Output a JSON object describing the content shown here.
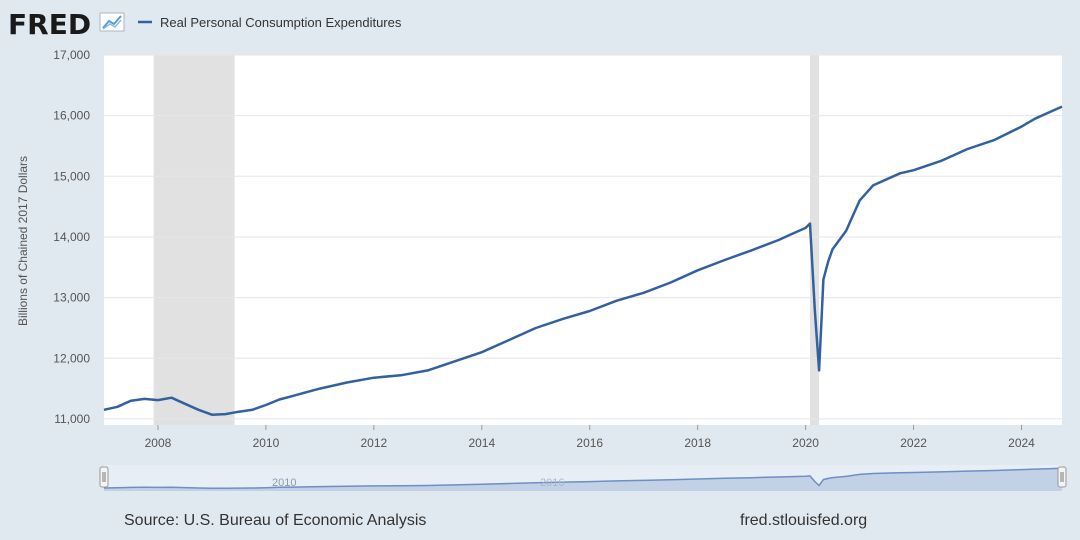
{
  "header": {
    "logo_text": "FRED",
    "logo_icon": "graph-line-icon"
  },
  "legend": {
    "items": [
      {
        "name": "Real Personal Consumption Expenditures",
        "color": "#33619e"
      }
    ]
  },
  "footer": {
    "source": "Source: U.S. Bureau of Economic Analysis",
    "url": "fred.stlouisfed.org"
  },
  "navigator": {
    "labels": [
      "2010",
      "2016"
    ]
  },
  "colors": {
    "background": "#e1e9f0",
    "plot_background": "#ffffff",
    "line": "#33619e",
    "recession": "#e1e1e1",
    "gridline": "#e6e6e6",
    "navigator_fill": "#c2d1e6",
    "navigator_border": "#6d8fc4"
  },
  "chart_data": {
    "type": "line",
    "title": "",
    "xlabel": "",
    "ylabel": "Billions of Chained 2017 Dollars",
    "xlim": [
      2007.0,
      2024.75
    ],
    "ylim": [
      10900,
      17000
    ],
    "yticks": [
      11000,
      12000,
      13000,
      14000,
      15000,
      16000,
      17000
    ],
    "ytick_labels": [
      "11,000",
      "12,000",
      "13,000",
      "14,000",
      "15,000",
      "16,000",
      "17,000"
    ],
    "xticks": [
      2008,
      2010,
      2012,
      2014,
      2016,
      2018,
      2020,
      2022,
      2024
    ],
    "xtick_labels": [
      "2008",
      "2010",
      "2012",
      "2014",
      "2016",
      "2018",
      "2020",
      "2022",
      "2024"
    ],
    "grid": true,
    "legend_position": "top-left",
    "recessions": [
      [
        2007.92,
        2009.42
      ],
      [
        2020.08,
        2020.25
      ]
    ],
    "series": [
      {
        "name": "Real Personal Consumption Expenditures",
        "x": [
          2007.0,
          2007.25,
          2007.5,
          2007.75,
          2008.0,
          2008.25,
          2008.5,
          2008.75,
          2009.0,
          2009.25,
          2009.5,
          2009.75,
          2010.0,
          2010.25,
          2010.5,
          2010.75,
          2011.0,
          2011.5,
          2012.0,
          2012.5,
          2013.0,
          2013.5,
          2014.0,
          2014.5,
          2015.0,
          2015.5,
          2016.0,
          2016.5,
          2017.0,
          2017.5,
          2018.0,
          2018.5,
          2019.0,
          2019.5,
          2019.75,
          2020.0,
          2020.08,
          2020.17,
          2020.25,
          2020.33,
          2020.42,
          2020.5,
          2020.75,
          2021.0,
          2021.25,
          2021.5,
          2021.75,
          2022.0,
          2022.5,
          2023.0,
          2023.5,
          2024.0,
          2024.25,
          2024.5,
          2024.75
        ],
        "y": [
          11150,
          11200,
          11300,
          11330,
          11310,
          11350,
          11250,
          11150,
          11070,
          11080,
          11120,
          11150,
          11230,
          11320,
          11380,
          11440,
          11500,
          11600,
          11680,
          11720,
          11800,
          11950,
          12100,
          12300,
          12500,
          12650,
          12780,
          12950,
          13080,
          13250,
          13450,
          13620,
          13780,
          13950,
          14050,
          14150,
          14220,
          12800,
          11800,
          13300,
          13600,
          13800,
          14100,
          14600,
          14850,
          14950,
          15050,
          15100,
          15250,
          15450,
          15600,
          15820,
          15950,
          16050,
          16150
        ]
      }
    ]
  }
}
